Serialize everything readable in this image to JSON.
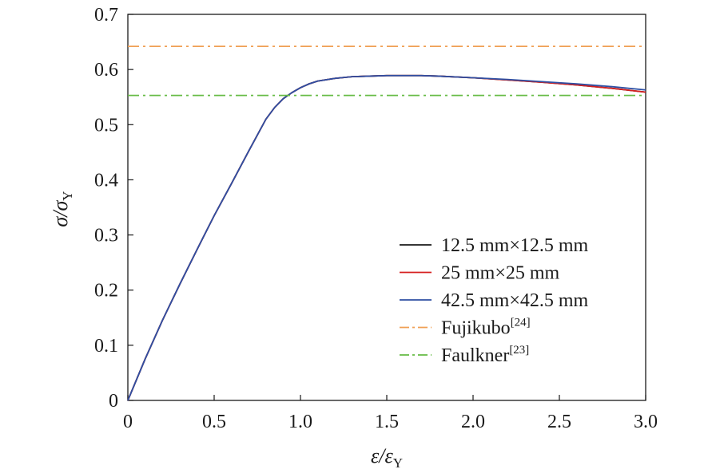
{
  "chart_data": {
    "type": "line",
    "title": "",
    "xlabel": {
      "main": "ε/ε",
      "sub": "Y"
    },
    "ylabel": {
      "main": "σ/σ",
      "sub": "Y"
    },
    "xlim": [
      0,
      3.0
    ],
    "ylim": [
      0,
      0.7
    ],
    "xticks": [
      {
        "value": 0,
        "label": "0"
      },
      {
        "value": 0.5,
        "label": "0.5"
      },
      {
        "value": 1.0,
        "label": "1.0"
      },
      {
        "value": 1.5,
        "label": "1.5"
      },
      {
        "value": 2.0,
        "label": "2.0"
      },
      {
        "value": 2.5,
        "label": "2.5"
      },
      {
        "value": 3.0,
        "label": "3.0"
      }
    ],
    "yticks": [
      {
        "value": 0,
        "label": "0"
      },
      {
        "value": 0.1,
        "label": "0.1"
      },
      {
        "value": 0.2,
        "label": "0.2"
      },
      {
        "value": 0.3,
        "label": "0.3"
      },
      {
        "value": 0.4,
        "label": "0.4"
      },
      {
        "value": 0.5,
        "label": "0.5"
      },
      {
        "value": 0.6,
        "label": "0.6"
      },
      {
        "value": 0.7,
        "label": "0.7"
      }
    ],
    "grid": false,
    "legend_position": "bottom-right",
    "series": [
      {
        "name": "12.5 mm×12.5 mm",
        "color": "#1a1a1a",
        "style": "solid",
        "x": [
          0,
          0.1,
          0.2,
          0.3,
          0.4,
          0.5,
          0.6,
          0.7,
          0.8,
          0.85,
          0.9,
          0.95,
          1.0,
          1.05,
          1.1,
          1.2,
          1.3,
          1.4,
          1.5,
          1.6,
          1.7,
          1.8,
          2.0,
          2.2,
          2.4,
          2.6,
          2.8,
          3.0
        ],
        "y": [
          0,
          0.075,
          0.145,
          0.21,
          0.273,
          0.335,
          0.393,
          0.452,
          0.51,
          0.531,
          0.547,
          0.558,
          0.567,
          0.574,
          0.579,
          0.584,
          0.587,
          0.588,
          0.589,
          0.589,
          0.589,
          0.588,
          0.585,
          0.581,
          0.577,
          0.572,
          0.566,
          0.559
        ]
      },
      {
        "name": "25 mm×25 mm",
        "color": "#d62020",
        "style": "solid",
        "x": [
          0,
          0.1,
          0.2,
          0.3,
          0.4,
          0.5,
          0.6,
          0.7,
          0.8,
          0.85,
          0.9,
          0.95,
          1.0,
          1.05,
          1.1,
          1.2,
          1.3,
          1.4,
          1.5,
          1.6,
          1.7,
          1.8,
          2.0,
          2.2,
          2.4,
          2.6,
          2.8,
          3.0
        ],
        "y": [
          0,
          0.075,
          0.145,
          0.21,
          0.273,
          0.335,
          0.393,
          0.452,
          0.51,
          0.531,
          0.547,
          0.558,
          0.567,
          0.574,
          0.579,
          0.584,
          0.587,
          0.588,
          0.589,
          0.589,
          0.589,
          0.588,
          0.585,
          0.581,
          0.577,
          0.572,
          0.566,
          0.559
        ]
      },
      {
        "name": "42.5 mm×42.5 mm",
        "color": "#2e4fa3",
        "style": "solid",
        "x": [
          0,
          0.1,
          0.2,
          0.3,
          0.4,
          0.5,
          0.6,
          0.7,
          0.8,
          0.85,
          0.9,
          0.95,
          1.0,
          1.05,
          1.1,
          1.2,
          1.3,
          1.4,
          1.5,
          1.6,
          1.7,
          1.8,
          2.0,
          2.2,
          2.4,
          2.6,
          2.8,
          3.0
        ],
        "y": [
          0,
          0.075,
          0.145,
          0.21,
          0.273,
          0.335,
          0.393,
          0.452,
          0.51,
          0.531,
          0.547,
          0.558,
          0.567,
          0.574,
          0.579,
          0.584,
          0.587,
          0.588,
          0.589,
          0.589,
          0.589,
          0.588,
          0.585,
          0.582,
          0.578,
          0.574,
          0.569,
          0.563
        ]
      },
      {
        "name": "Fujikubo",
        "ref": "[24]",
        "color": "#f0a055",
        "style": "dashdot",
        "x": [
          0,
          3.0
        ],
        "y": [
          0.642,
          0.642
        ]
      },
      {
        "name": "Faulkner",
        "ref": "[23]",
        "color": "#66bb44",
        "style": "dashdot",
        "x": [
          0,
          3.0
        ],
        "y": [
          0.553,
          0.553
        ]
      }
    ]
  }
}
